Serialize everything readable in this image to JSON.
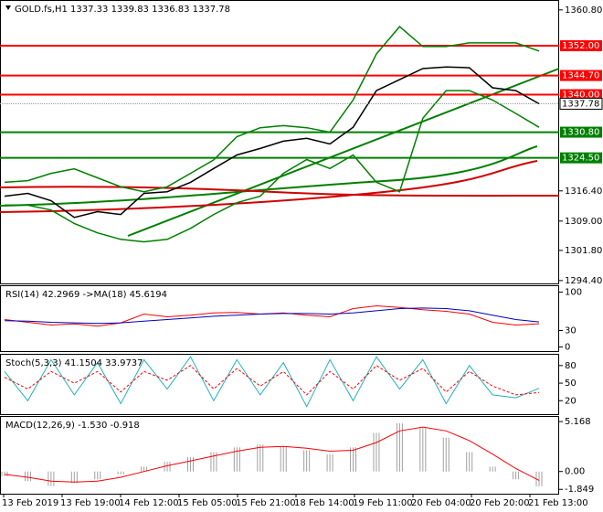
{
  "chart_data": [
    {
      "type": "line",
      "title": "GOLD.fs,H1  1337.33 1339.83 1336.83 1337.78",
      "ylim": [
        1293.7,
        1363.0
      ],
      "yticks": [
        {
          "value": 1360.8,
          "label": "1360.80"
        },
        {
          "value": 1316.4,
          "label": "1316.40"
        },
        {
          "value": 1309,
          "label": "1309.00"
        },
        {
          "value": 1301.8,
          "label": "1301.80"
        },
        {
          "value": 1294.4,
          "label": "1294.40"
        }
      ],
      "series": [
        {
          "color": "#008000",
          "values": [
            1318.5,
            1318.9,
            1320.7,
            1321.8,
            1319.6,
            1317.4,
            1316.2,
            1317.4,
            1320.7,
            1324.0,
            1329.7,
            1331.9,
            1332.4,
            1331.9,
            1330.8,
            1338.7,
            1350.0,
            1356.7,
            1351.8,
            1351.8,
            1352.7,
            1352.7,
            1352.7,
            1350.7
          ]
        },
        {
          "color": "#008000",
          "values": [
            1312.9,
            1312.9,
            1311.7,
            1308.4,
            1306.1,
            1304.5,
            1303.9,
            1304.5,
            1307.2,
            1310.6,
            1313.5,
            1315.1,
            1320.7,
            1324.1,
            1321.9,
            1325.2,
            1318.5,
            1316.2,
            1334.2,
            1341.0,
            1341.0,
            1338.7,
            1335.4,
            1332.0
          ]
        },
        {
          "color": "#000000",
          "values": [
            1315.1,
            1315.8,
            1314.0,
            1309.9,
            1311.3,
            1310.6,
            1315.8,
            1316.2,
            1318.5,
            1321.9,
            1325.2,
            1326.8,
            1328.6,
            1329.3,
            1327.9,
            1332.0,
            1341.0,
            1343.7,
            1346.4,
            1346.8,
            1346.6,
            1341.7,
            1341.0,
            1337.78
          ]
        }
      ],
      "levels": [
        {
          "value": 1352,
          "label": "1352.00",
          "color": "#ff0000"
        },
        {
          "value": 1344.7,
          "label": "1344.70",
          "color": "#ff0000"
        },
        {
          "value": 1340,
          "label": "1340.00",
          "color": "#ff0000"
        },
        {
          "value": 1330.8,
          "label": "1330.80",
          "color": "#008000"
        },
        {
          "value": 1324.5,
          "label": "1324.50",
          "color": "#008000"
        }
      ],
      "last_price": {
        "value": 1337.78,
        "label": "1337.78"
      }
    },
    {
      "type": "line",
      "title": "RSI(14) 42.2969 ->MA(18) 45.6194",
      "ylim": [
        -7.5,
        110.8
      ],
      "yticks": [
        100,
        30,
        0
      ],
      "series": [
        {
          "color": "#ff0000",
          "values": [
            50,
            45,
            40,
            42,
            38,
            44,
            60,
            55,
            58,
            62,
            63,
            60,
            62,
            58,
            55,
            70,
            75,
            72,
            68,
            65,
            60,
            45,
            40,
            42.2969
          ]
        },
        {
          "color": "#0000c0",
          "values": [
            48,
            47,
            45,
            44,
            43,
            44,
            47,
            50,
            53,
            56,
            58,
            60,
            61,
            61,
            60,
            62,
            66,
            70,
            71,
            70,
            66,
            58,
            50,
            45.6194
          ]
        }
      ]
    },
    {
      "type": "line",
      "title": "Stoch(5,3,3) 41.1504 33.9737",
      "ylim": [
        -3,
        98.5
      ],
      "yticks": [
        80,
        50,
        20
      ],
      "series": [
        {
          "color": "#20b0c0",
          "values": [
            70,
            20,
            90,
            30,
            85,
            15,
            90,
            40,
            95,
            20,
            90,
            30,
            85,
            10,
            90,
            20,
            95,
            40,
            90,
            15,
            80,
            30,
            25,
            41.1504
          ]
        },
        {
          "color": "#ff0000",
          "dash": true,
          "values": [
            60,
            40,
            70,
            50,
            70,
            35,
            70,
            55,
            80,
            40,
            75,
            45,
            70,
            30,
            70,
            40,
            80,
            55,
            75,
            35,
            70,
            45,
            30,
            33.9737
          ]
        }
      ]
    },
    {
      "type": "macd",
      "title": "MACD(12,26,9) -1.530 -0.918",
      "ylim": [
        -2.3,
        5.65
      ],
      "yticks": [
        5.168,
        {
          "value": 0,
          "label": "0.00"
        },
        -1.849
      ],
      "series": [
        {
          "color": "#a0a0a0",
          "kind": "bar",
          "values": [
            -0.5,
            -1,
            -1.5,
            -1.2,
            -0.8,
            -0.3,
            0.5,
            1.0,
            1.5,
            2.0,
            2.5,
            2.8,
            2.6,
            2.2,
            1.8,
            2.5,
            4.0,
            5.0,
            4.5,
            3.5,
            2.0,
            0.5,
            -0.8,
            -1.53
          ]
        },
        {
          "color": "#ff0000",
          "kind": "line",
          "values": [
            -0.3,
            -0.6,
            -1.0,
            -1.1,
            -1.0,
            -0.6,
            0,
            0.6,
            1.1,
            1.6,
            2.1,
            2.5,
            2.6,
            2.4,
            2.1,
            2.2,
            3.0,
            4.2,
            4.6,
            4.2,
            3.2,
            1.8,
            0.3,
            -0.918
          ]
        }
      ],
      "x_tick_labels": [
        "13 Feb 2019",
        "13 Feb 19:00",
        "14 Feb 12:00",
        "15 Feb 05:00",
        "15 Feb 21:00",
        "18 Feb 14:00",
        "19 Feb 11:00",
        "20 Feb 04:00",
        "20 Feb 20:00",
        "21 Feb 13:00"
      ]
    }
  ]
}
